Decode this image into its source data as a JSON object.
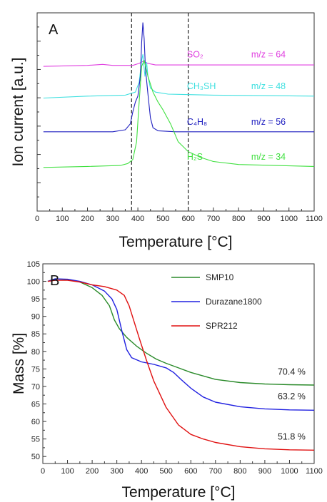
{
  "chart_data": [
    {
      "type": "line",
      "panel_label": "A",
      "title": "",
      "xlabel": "Temperature [°C]",
      "ylabel": "Ion current [a.u.]",
      "xlim": [
        0,
        1100
      ],
      "ylim": [
        0,
        1
      ],
      "xticks": [
        0,
        100,
        200,
        300,
        400,
        500,
        600,
        700,
        800,
        900,
        1000,
        1100
      ],
      "y_tick_labels": "none",
      "grid": false,
      "vertical_dashed_lines": [
        375,
        600
      ],
      "series": [
        {
          "name": "SO₂",
          "mz_label": "m/z = 64",
          "color": "#e040e0",
          "x": [
            25,
            200,
            260,
            300,
            380,
            405,
            420,
            440,
            470,
            600,
            800,
            1100
          ],
          "y": [
            0.73,
            0.735,
            0.74,
            0.735,
            0.735,
            0.745,
            0.755,
            0.745,
            0.737,
            0.737,
            0.737,
            0.737
          ]
        },
        {
          "name": "CH₃SH",
          "mz_label": "m/z = 48",
          "color": "#40e0e0",
          "x": [
            25,
            200,
            350,
            390,
            405,
            415,
            420,
            428,
            435,
            440,
            450,
            470,
            520,
            700,
            1100
          ],
          "y": [
            0.57,
            0.58,
            0.585,
            0.6,
            0.65,
            0.76,
            0.79,
            0.68,
            0.75,
            0.68,
            0.62,
            0.6,
            0.59,
            0.585,
            0.58
          ]
        },
        {
          "name": "C₄H₈",
          "mz_label": "m/z = 56",
          "color": "#2020c0",
          "x": [
            25,
            300,
            350,
            370,
            380,
            390,
            400,
            410,
            415,
            420,
            425,
            430,
            440,
            450,
            460,
            480,
            550,
            700,
            1100
          ],
          "y": [
            0.4,
            0.4,
            0.41,
            0.44,
            0.5,
            0.55,
            0.58,
            0.68,
            0.85,
            0.95,
            0.87,
            0.72,
            0.59,
            0.47,
            0.42,
            0.405,
            0.4,
            0.4,
            0.4
          ]
        },
        {
          "name": "H₂S",
          "mz_label": "m/z = 34",
          "color": "#40e040",
          "x": [
            25,
            200,
            330,
            360,
            380,
            395,
            405,
            415,
            425,
            440,
            460,
            480,
            500,
            530,
            560,
            600,
            650,
            700,
            800,
            1100
          ],
          "y": [
            0.22,
            0.225,
            0.23,
            0.24,
            0.26,
            0.35,
            0.55,
            0.73,
            0.76,
            0.68,
            0.6,
            0.55,
            0.51,
            0.44,
            0.35,
            0.3,
            0.27,
            0.25,
            0.235,
            0.225
          ]
        }
      ]
    },
    {
      "type": "line",
      "panel_label": "B",
      "title": "",
      "xlabel": "Temperature [°C]",
      "ylabel": "Mass [%]",
      "xlim": [
        0,
        1100
      ],
      "ylim": [
        48,
        105
      ],
      "xticks": [
        0,
        100,
        200,
        300,
        400,
        500,
        600,
        700,
        800,
        900,
        1000,
        1100
      ],
      "yticks": [
        50,
        55,
        60,
        65,
        70,
        75,
        80,
        85,
        90,
        95,
        100,
        105
      ],
      "grid": false,
      "legend_position": "top-right",
      "series": [
        {
          "name": "SMP10",
          "color": "#2a8a2a",
          "end_label": "70.4 %",
          "x": [
            20,
            50,
            100,
            150,
            200,
            240,
            270,
            290,
            310,
            340,
            380,
            420,
            460,
            500,
            550,
            600,
            650,
            700,
            800,
            900,
            1000,
            1100
          ],
          "y": [
            100,
            100.7,
            100.5,
            99.8,
            98.2,
            96,
            93,
            89,
            86.5,
            84,
            81.5,
            79.5,
            77.8,
            76.6,
            75.3,
            74,
            73,
            72,
            71.1,
            70.7,
            70.5,
            70.4
          ]
        },
        {
          "name": "Durazane1800",
          "color": "#2020e0",
          "end_label": "63.2 %",
          "x": [
            20,
            50,
            100,
            150,
            200,
            250,
            280,
            300,
            320,
            340,
            360,
            400,
            450,
            500,
            530,
            560,
            600,
            650,
            700,
            800,
            900,
            1000,
            1100
          ],
          "y": [
            100,
            100.7,
            100.6,
            100,
            99,
            97.2,
            95,
            92,
            86,
            80.5,
            78.2,
            77,
            76.3,
            75.3,
            74,
            72,
            69.5,
            67,
            65.5,
            64.2,
            63.6,
            63.3,
            63.2
          ]
        },
        {
          "name": "SPR212",
          "color": "#e01010",
          "end_label": "51.8 %",
          "x": [
            20,
            50,
            100,
            150,
            200,
            250,
            300,
            330,
            350,
            370,
            390,
            420,
            450,
            500,
            550,
            600,
            650,
            700,
            800,
            900,
            1000,
            1100
          ],
          "y": [
            100,
            100.3,
            100.3,
            99.8,
            99,
            98.5,
            97.5,
            96,
            93,
            88.5,
            84,
            77.5,
            71.5,
            64,
            59,
            56.3,
            55,
            54,
            52.8,
            52.2,
            51.9,
            51.8
          ]
        }
      ]
    }
  ]
}
